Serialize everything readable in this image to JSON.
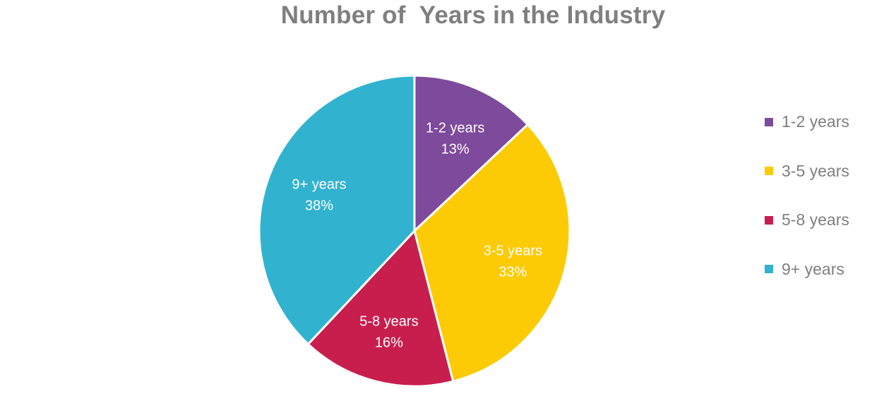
{
  "chart_data": {
    "type": "pie",
    "title": "Number of  Years in the Industry",
    "categories": [
      "1-2 years",
      "3-5 years",
      "5-8 years",
      "9+ years"
    ],
    "values": [
      13,
      33,
      16,
      38
    ],
    "value_labels": [
      "13%",
      "33%",
      "16%",
      "38%"
    ],
    "colors": [
      "#7e4a9b",
      "#fdcb06",
      "#c81e4e",
      "#31b3cf"
    ],
    "start_angle": "12 o'clock",
    "direction": "clockwise",
    "legend_position": "right"
  }
}
